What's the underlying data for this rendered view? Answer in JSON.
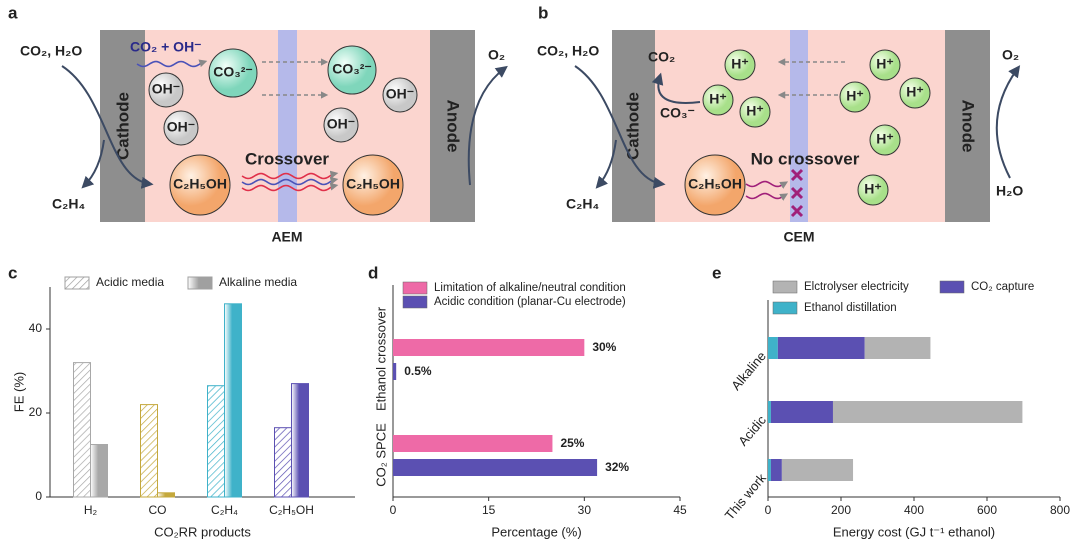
{
  "panel_a": {
    "label": "a",
    "reactants": "CO₂, H₂O",
    "cathode": "Cathode",
    "anode": "Anode",
    "product_cathode": "C₂H₄",
    "product_anode": "O₂",
    "reaction": "CO₂ + OH⁻",
    "ions": [
      "CO₃²⁻",
      "CO₃²⁻",
      "OH⁻",
      "OH⁻",
      "OH⁻",
      "OH⁻"
    ],
    "ethanol": [
      "C₂H₅OH",
      "C₂H₅OH"
    ],
    "crossover": "Crossover",
    "membrane": "AEM"
  },
  "panel_b": {
    "label": "b",
    "reactants": "CO₂, H₂O",
    "cathode": "Cathode",
    "anode": "Anode",
    "product_cathode": "C₂H₄",
    "product_anode": "O₂",
    "anode_reactant": "H₂O",
    "co2": "CO₂",
    "carbonate": "CO₃⁻",
    "protons": [
      "H⁺",
      "H⁺",
      "H⁺",
      "H⁺",
      "H⁺",
      "H⁺",
      "H⁺",
      "H⁺"
    ],
    "ethanol": "C₂H₅OH",
    "crossover": "No crossover",
    "membrane": "CEM"
  },
  "chart_data": [
    {
      "type": "bar",
      "label": "c",
      "xlabel": "CO₂RR products",
      "ylabel": "FE (%)",
      "categories": [
        "H₂",
        "CO",
        "C₂H₄",
        "C₂H₅OH"
      ],
      "category_colors": [
        "#a8a8a8",
        "#c4a83c",
        "#3fb2c9",
        "#5b50b2"
      ],
      "legend_color": "#a0a0a0",
      "series": [
        {
          "name": "Acidic media",
          "pattern": "hatched",
          "values": [
            32,
            22,
            26.5,
            16.5
          ]
        },
        {
          "name": "Alkaline media",
          "pattern": "solid",
          "values": [
            12.5,
            1,
            46,
            27
          ]
        }
      ],
      "ylim": [
        0,
        50
      ],
      "yticks": [
        0,
        20,
        40
      ]
    },
    {
      "type": "hbar",
      "label": "d",
      "xlabel": "Percentage (%)",
      "categories": [
        "Ethanol crossover",
        "CO₂ SPCE"
      ],
      "series": [
        {
          "name": "Limitation of alkaline/neutral condition",
          "color": "#ee6aa7",
          "values": [
            30,
            25
          ],
          "value_labels": [
            "30%",
            "25%"
          ]
        },
        {
          "name": "Acidic condition (planar-Cu electrode)",
          "color": "#5b50b2",
          "values": [
            0.5,
            32
          ],
          "value_labels": [
            "0.5%",
            "32%"
          ]
        }
      ],
      "xlim": [
        0,
        45
      ],
      "xticks": [
        0,
        15,
        30,
        45
      ]
    },
    {
      "type": "hbar_stacked",
      "label": "e",
      "xlabel": "Energy cost (GJ t⁻¹ ethanol)",
      "categories": [
        "Alkaline",
        "Acidic",
        "This work"
      ],
      "series": [
        {
          "name": "Elctrolyser electricity",
          "color": "#b3b3b3",
          "values": [
            180,
            519,
            195
          ]
        },
        {
          "name": "CO₂ capture",
          "color": "#5b50b2",
          "values": [
            238,
            170,
            30
          ]
        },
        {
          "name": "Ethanol distillation",
          "color": "#3fb2c9",
          "values": [
            27,
            8,
            8
          ]
        }
      ],
      "xlim": [
        0,
        800
      ],
      "xticks": [
        0,
        200,
        400,
        600,
        800
      ]
    }
  ]
}
